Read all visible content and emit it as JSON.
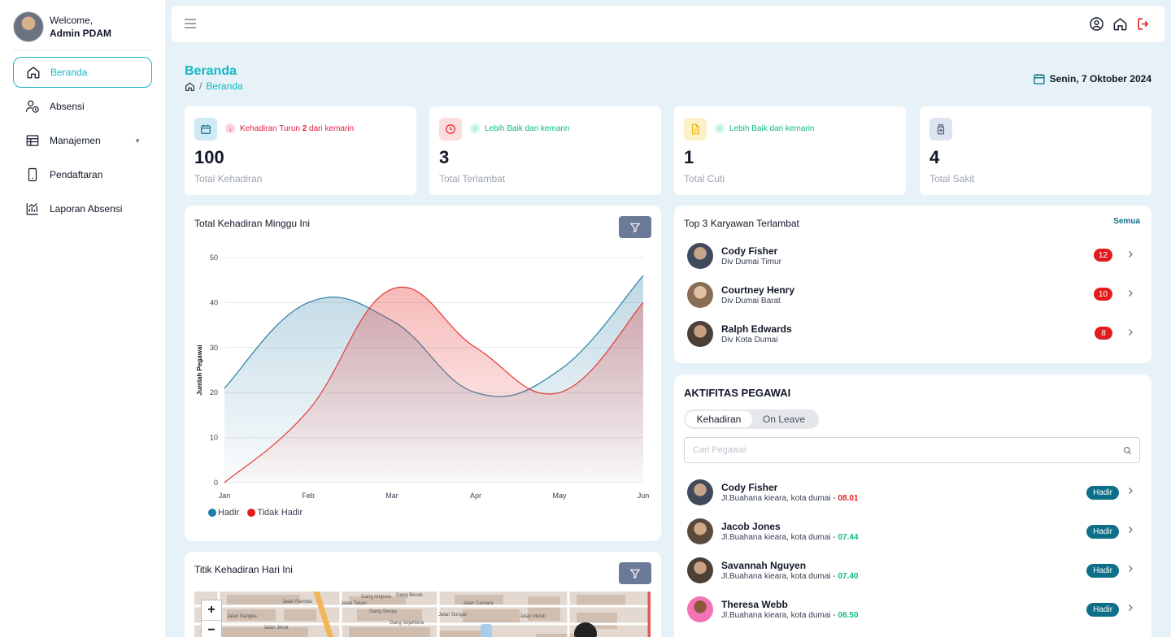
{
  "user": {
    "greeting": "Welcome,",
    "name": "Admin PDAM"
  },
  "sidebar": {
    "items": [
      {
        "label": "Beranda",
        "icon": "home-icon",
        "active": true
      },
      {
        "label": "Absensi",
        "icon": "user-clock-icon"
      },
      {
        "label": "Manajemen",
        "icon": "table-icon",
        "has_dropdown": true
      },
      {
        "label": "Pendaftaran",
        "icon": "phone-icon"
      },
      {
        "label": "Laporan Absensi",
        "icon": "bar-chart-icon"
      }
    ]
  },
  "topbar": {
    "icons": [
      "user-circle-icon",
      "home-icon",
      "logout-icon"
    ]
  },
  "page": {
    "title": "Beranda",
    "breadcrumb": [
      "Beranda"
    ],
    "date": "Senin, 7 Oktober 2024"
  },
  "stats": [
    {
      "prefix": "Kehadiran Turun ",
      "highlight": "2",
      "suffix": " dari kemarin",
      "value": "100",
      "label": "Total Kehadiran",
      "trend": "down",
      "icon": "calendar-icon",
      "color": "#e11d48"
    },
    {
      "prefix": "Lebih Baik dari kemarin",
      "highlight": "",
      "suffix": "",
      "value": "3",
      "label": "Total Terlambat",
      "trend": "up",
      "icon": "clock-icon",
      "color": "#10b981"
    },
    {
      "prefix": "Lebih Baik dari kemarin",
      "highlight": "",
      "suffix": "",
      "value": "1",
      "label": "Total Cuti",
      "trend": "up",
      "icon": "document-icon",
      "color": "#10b981"
    },
    {
      "prefix": "",
      "highlight": "",
      "suffix": "",
      "value": "4",
      "label": "Total Sakit",
      "trend": "none",
      "icon": "medicine-icon",
      "color": "#6b7280"
    }
  ],
  "weekly_chart": {
    "title": "Total Kehadiran Minggu Ini"
  },
  "chart_data": {
    "type": "area",
    "categories": [
      "Jan",
      "Feb",
      "Mar",
      "Apr",
      "May",
      "Jun"
    ],
    "series": [
      {
        "name": "Hadir",
        "values": [
          21,
          40,
          36,
          20,
          25,
          46
        ],
        "color": "#2a7fa6"
      },
      {
        "name": "Tidak Hadir",
        "values": [
          0,
          16,
          43,
          30,
          20,
          40
        ],
        "color": "#e53935"
      }
    ],
    "ylabel": "Jumlah Pegawai",
    "xlabel": "",
    "ylim": [
      0,
      50
    ],
    "yticks": [
      0,
      10,
      20,
      30,
      40,
      50
    ],
    "grid": true,
    "legend": "bottom-left"
  },
  "map_card": {
    "title": "Titik Kehadiran Hari Ini",
    "zoom_in": "+",
    "zoom_out": "−",
    "streets": [
      "Jalan Rambai",
      "Gang Ampera",
      "Gang Becek",
      "Jalan Takan",
      "Jalan Cemara",
      "Jalan Nangka",
      "Gang Seroja",
      "Gang Sejahtera",
      "Jalan Jeruk",
      "Jalan Melati",
      "Jalan Sungai"
    ]
  },
  "top_late": {
    "title": "Top 3 Karyawan Terlambat",
    "see_all": "Semua",
    "employees": [
      {
        "name": "Cody Fisher",
        "division": "Div Dumai Timur",
        "count": "12"
      },
      {
        "name": "Courtney Henry",
        "division": "Div Dumai Barat",
        "count": "10"
      },
      {
        "name": "Ralph Edwards",
        "division": "Div Kota Dumai",
        "count": "8"
      }
    ]
  },
  "activity": {
    "title": "AKTIFITAS PEGAWAI",
    "tabs": [
      "Kehadiran",
      "On Leave"
    ],
    "search_placeholder": "Cari Pegawai",
    "rows": [
      {
        "name": "Cody Fisher",
        "address": "Jl.Buahana kieara, kota dumai - ",
        "time": "08.01",
        "time_color": "#e11d1d",
        "status": "Hadir"
      },
      {
        "name": "Jacob Jones",
        "address": "Jl.Buahana kieara, kota dumai - ",
        "time": "07.44",
        "time_color": "#10b981",
        "status": "Hadir"
      },
      {
        "name": "Savannah Nguyen",
        "address": "Jl.Buahana kieara, kota dumai - ",
        "time": "07.40",
        "time_color": "#10b981",
        "status": "Hadir"
      },
      {
        "name": "Theresa Webb",
        "address": "Jl.Buahana kieara, kota dumai - ",
        "time": "06.50",
        "time_color": "#10b981",
        "status": "Hadir"
      }
    ]
  },
  "colors": {
    "accent": "#14b8c6",
    "primary_dark": "#0e6f88",
    "danger": "#e11d1d",
    "success": "#10b981"
  }
}
